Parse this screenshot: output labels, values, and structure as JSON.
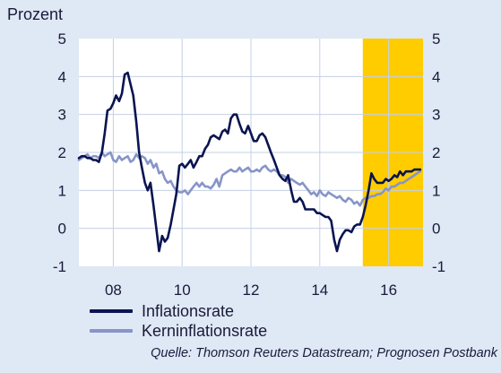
{
  "chart_data": {
    "type": "line",
    "ylabel": "Prozent",
    "ylim": [
      -1,
      5
    ],
    "yticks": [
      -1,
      0,
      1,
      2,
      3,
      4,
      5
    ],
    "xlim": [
      2007.0,
      2017.0
    ],
    "xticks": [
      {
        "value": 2008.0,
        "label": "08"
      },
      {
        "value": 2010.0,
        "label": "10"
      },
      {
        "value": 2012.0,
        "label": "12"
      },
      {
        "value": 2014.0,
        "label": "14"
      },
      {
        "value": 2016.0,
        "label": "16"
      }
    ],
    "forecast_start": 2015.25,
    "colors": {
      "background": "#dfe8f5",
      "plot_area": "#ffffff",
      "grid": "#c4d0e6",
      "forecast": "#ffcc00",
      "inflation": "#0a1450",
      "core": "#8795c8"
    },
    "series": [
      {
        "name": "Inflationsrate",
        "x": [
          2007.0,
          2007.08,
          2007.17,
          2007.25,
          2007.33,
          2007.42,
          2007.5,
          2007.58,
          2007.67,
          2007.75,
          2007.83,
          2007.92,
          2008.0,
          2008.08,
          2008.17,
          2008.25,
          2008.33,
          2008.42,
          2008.5,
          2008.58,
          2008.67,
          2008.75,
          2008.83,
          2008.92,
          2009.0,
          2009.08,
          2009.17,
          2009.25,
          2009.33,
          2009.42,
          2009.5,
          2009.58,
          2009.67,
          2009.75,
          2009.83,
          2009.92,
          2010.0,
          2010.08,
          2010.17,
          2010.25,
          2010.33,
          2010.42,
          2010.5,
          2010.58,
          2010.67,
          2010.75,
          2010.83,
          2010.92,
          2011.0,
          2011.08,
          2011.17,
          2011.25,
          2011.33,
          2011.42,
          2011.5,
          2011.58,
          2011.67,
          2011.75,
          2011.83,
          2011.92,
          2012.0,
          2012.08,
          2012.17,
          2012.25,
          2012.33,
          2012.42,
          2012.5,
          2012.58,
          2012.67,
          2012.75,
          2012.83,
          2012.92,
          2013.0,
          2013.08,
          2013.17,
          2013.25,
          2013.33,
          2013.42,
          2013.5,
          2013.58,
          2013.67,
          2013.75,
          2013.83,
          2013.92,
          2014.0,
          2014.08,
          2014.17,
          2014.25,
          2014.33,
          2014.42,
          2014.5,
          2014.58,
          2014.67,
          2014.75,
          2014.83,
          2014.92,
          2015.0,
          2015.08,
          2015.17,
          2015.25,
          2015.33,
          2015.42,
          2015.5,
          2015.58,
          2015.67,
          2015.75,
          2015.83,
          2015.92,
          2016.0,
          2016.08,
          2016.17,
          2016.25,
          2016.33,
          2016.42,
          2016.5,
          2016.58,
          2016.67,
          2016.75,
          2016.83,
          2016.92
        ],
        "values": [
          1.85,
          1.9,
          1.9,
          1.85,
          1.85,
          1.8,
          1.8,
          1.75,
          2.0,
          2.5,
          3.1,
          3.15,
          3.3,
          3.5,
          3.35,
          3.55,
          4.05,
          4.1,
          3.8,
          3.5,
          2.8,
          2.0,
          1.6,
          1.2,
          1.0,
          1.2,
          0.6,
          0.0,
          -0.6,
          -0.2,
          -0.35,
          -0.25,
          0.1,
          0.5,
          0.9,
          1.65,
          1.7,
          1.6,
          1.7,
          1.8,
          1.6,
          1.75,
          1.9,
          1.9,
          2.1,
          2.2,
          2.4,
          2.45,
          2.4,
          2.35,
          2.55,
          2.6,
          2.5,
          2.9,
          3.0,
          3.0,
          2.75,
          2.55,
          2.5,
          2.7,
          2.5,
          2.3,
          2.3,
          2.45,
          2.5,
          2.4,
          2.2,
          2.0,
          1.8,
          1.6,
          1.4,
          1.3,
          1.25,
          1.4,
          1.0,
          0.7,
          0.7,
          0.8,
          0.7,
          0.5,
          0.5,
          0.5,
          0.5,
          0.4,
          0.4,
          0.35,
          0.3,
          0.3,
          0.2,
          -0.3,
          -0.6,
          -0.3,
          -0.15,
          -0.05,
          -0.05,
          -0.1,
          0.05,
          0.1,
          0.1,
          0.3,
          0.6,
          1.0,
          1.45,
          1.3,
          1.2,
          1.2,
          1.2,
          1.3,
          1.25,
          1.3,
          1.4,
          1.35,
          1.5,
          1.4,
          1.5,
          1.5,
          1.5,
          1.55,
          1.55,
          1.55
        ]
      },
      {
        "name": "Kerninflationsrate",
        "x": [
          2007.0,
          2007.08,
          2007.17,
          2007.25,
          2007.33,
          2007.42,
          2007.5,
          2007.58,
          2007.67,
          2007.75,
          2007.83,
          2007.92,
          2008.0,
          2008.08,
          2008.17,
          2008.25,
          2008.33,
          2008.42,
          2008.5,
          2008.58,
          2008.67,
          2008.75,
          2008.83,
          2008.92,
          2009.0,
          2009.08,
          2009.17,
          2009.25,
          2009.33,
          2009.42,
          2009.5,
          2009.58,
          2009.67,
          2009.75,
          2009.83,
          2009.92,
          2010.0,
          2010.08,
          2010.17,
          2010.25,
          2010.33,
          2010.42,
          2010.5,
          2010.58,
          2010.67,
          2010.75,
          2010.83,
          2010.92,
          2011.0,
          2011.08,
          2011.17,
          2011.25,
          2011.33,
          2011.42,
          2011.5,
          2011.58,
          2011.67,
          2011.75,
          2011.83,
          2011.92,
          2012.0,
          2012.08,
          2012.17,
          2012.25,
          2012.33,
          2012.42,
          2012.5,
          2012.58,
          2012.67,
          2012.75,
          2012.83,
          2012.92,
          2013.0,
          2013.08,
          2013.17,
          2013.25,
          2013.33,
          2013.42,
          2013.5,
          2013.58,
          2013.67,
          2013.75,
          2013.83,
          2013.92,
          2014.0,
          2014.08,
          2014.17,
          2014.25,
          2014.33,
          2014.42,
          2014.5,
          2014.58,
          2014.67,
          2014.75,
          2014.83,
          2014.92,
          2015.0,
          2015.08,
          2015.17,
          2015.25,
          2015.33,
          2015.42,
          2015.5,
          2015.58,
          2015.67,
          2015.75,
          2015.83,
          2015.92,
          2016.0,
          2016.08,
          2016.17,
          2016.25,
          2016.33,
          2016.42,
          2016.5,
          2016.58,
          2016.67,
          2016.75,
          2016.83,
          2016.92
        ],
        "values": [
          1.8,
          1.85,
          1.9,
          1.95,
          1.85,
          1.9,
          1.9,
          1.85,
          2.0,
          1.9,
          1.95,
          2.0,
          1.8,
          1.75,
          1.9,
          1.8,
          1.85,
          1.9,
          1.75,
          1.8,
          1.95,
          1.85,
          1.9,
          1.85,
          1.7,
          1.8,
          1.6,
          1.7,
          1.45,
          1.5,
          1.3,
          1.2,
          1.25,
          1.1,
          1.0,
          0.95,
          0.95,
          1.0,
          0.9,
          1.0,
          1.1,
          1.2,
          1.1,
          1.2,
          1.1,
          1.1,
          1.05,
          1.15,
          1.3,
          1.1,
          1.4,
          1.45,
          1.5,
          1.55,
          1.5,
          1.5,
          1.6,
          1.5,
          1.55,
          1.6,
          1.5,
          1.5,
          1.55,
          1.5,
          1.6,
          1.65,
          1.55,
          1.5,
          1.55,
          1.5,
          1.4,
          1.4,
          1.35,
          1.2,
          1.3,
          1.25,
          1.2,
          1.15,
          1.2,
          1.1,
          1.0,
          0.9,
          0.95,
          0.85,
          1.0,
          0.9,
          0.85,
          0.95,
          0.9,
          0.85,
          0.8,
          0.85,
          0.75,
          0.7,
          0.8,
          0.75,
          0.65,
          0.7,
          0.6,
          0.75,
          0.8,
          0.8,
          0.85,
          0.85,
          0.9,
          0.9,
          0.95,
          1.05,
          1.0,
          1.1,
          1.1,
          1.15,
          1.2,
          1.2,
          1.25,
          1.3,
          1.35,
          1.4,
          1.45,
          1.5
        ]
      }
    ]
  },
  "source_text": "Quelle: Thomson Reuters Datastream; Prognosen Postbank"
}
